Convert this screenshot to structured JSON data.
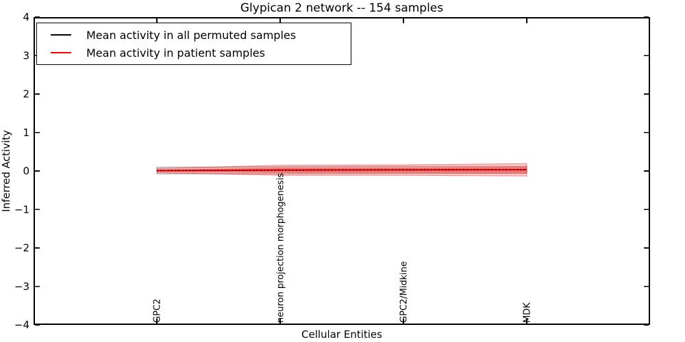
{
  "chart_data": {
    "type": "line",
    "title": "Glypican 2 network -- 154 samples",
    "xlabel": "Cellular Entities",
    "ylabel": "Inferred Activity",
    "categories": [
      "GPC2",
      "neuron projection morphogenesis",
      "GPC2/Midkine",
      "MDK"
    ],
    "ylim": [
      -4,
      4
    ],
    "yticks": [
      4,
      3,
      2,
      1,
      0,
      -1,
      -2,
      -3,
      -4
    ],
    "ytick_labels": [
      "4",
      "3",
      "2",
      "1",
      "0",
      "−1",
      "−2",
      "−3",
      "−4"
    ],
    "grid": false,
    "legend_position": "upper left",
    "tick_direction": "in",
    "series": [
      {
        "name": "Mean activity in all permuted samples",
        "color": "#000000",
        "line_style": "dotted",
        "values": [
          0.01,
          0.02,
          0.03,
          0.035
        ]
      },
      {
        "name": "Mean activity in patient samples",
        "color": "#ff0000",
        "line_style": "solid",
        "values": [
          0.01,
          0.025,
          0.03,
          0.035
        ]
      }
    ],
    "bands": [
      {
        "name": "permuted samples spread",
        "fill": "rgba(110,110,110,0.18)",
        "edge": "rgba(60,60,60,0.45)",
        "upper": [
          0.1,
          0.11,
          0.12,
          0.12
        ],
        "lower": [
          -0.075,
          -0.07,
          -0.065,
          -0.06
        ]
      },
      {
        "name": "patient samples spread outer",
        "fill": "rgba(255,0,0,0.20)",
        "edge": "rgba(255,0,0,0.45)",
        "upper": [
          0.06,
          0.15,
          0.16,
          0.19
        ],
        "lower": [
          -0.045,
          -0.11,
          -0.11,
          -0.13
        ]
      },
      {
        "name": "patient samples spread inner",
        "fill": "rgba(255,0,0,0.35)",
        "edge": "none",
        "upper": [
          0.035,
          0.085,
          0.09,
          0.115
        ],
        "lower": [
          -0.02,
          -0.05,
          -0.05,
          -0.06
        ]
      }
    ]
  }
}
